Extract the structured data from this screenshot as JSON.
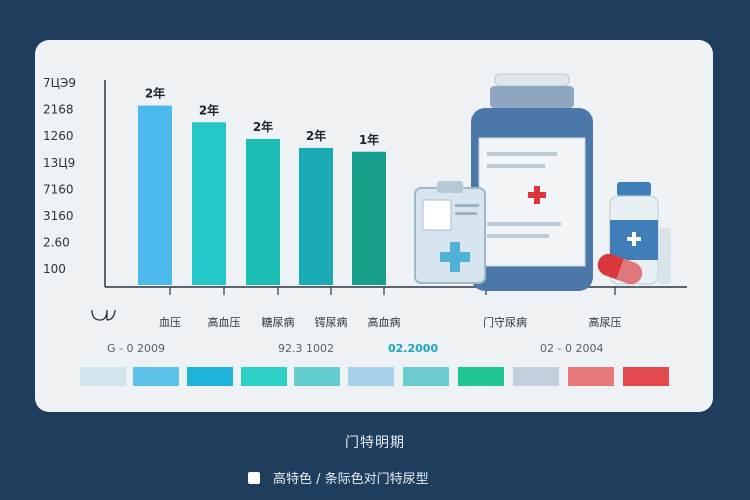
{
  "chart_data": {
    "type": "bar",
    "y_ticks": [
      "7ЦЭ9",
      "2168",
      "1260",
      "13Ц9",
      "7160",
      "3160",
      "2.60",
      "100"
    ],
    "categories": [
      "血压",
      "高血压",
      "糖尿病",
      "锷尿病",
      "高血病"
    ],
    "values": [
      7,
      6.35,
      5.7,
      5.35,
      5.2
    ],
    "data_labels": [
      "2年",
      "2年",
      "2年",
      "2年",
      "1年"
    ],
    "bar_colors": [
      "#4bb9ec",
      "#23c7c6",
      "#1cbdb2",
      "#19aab3",
      "#169e8a"
    ],
    "ylim": [
      0,
      8
    ],
    "extra_categories": [
      "门守尿病",
      "高尿压"
    ],
    "period_labels": [
      "G - 0 2009",
      "92.3 1002",
      "02.2000",
      "02 - 0 2004"
    ],
    "color_strip": [
      "#cfe6ec",
      "#5cc2ea",
      "#1fb2dd",
      "#2fcfc9",
      "#63cdd0",
      "#a6d1ea",
      "#6ccccd",
      "#1fc693",
      "#c3cfdc",
      "#e8787a",
      "#e24a4e"
    ],
    "legend_title": "门特明期",
    "legend_items": [
      {
        "label": "高特色 / 条际色对门特尿型",
        "color": "#ffffff"
      }
    ]
  }
}
